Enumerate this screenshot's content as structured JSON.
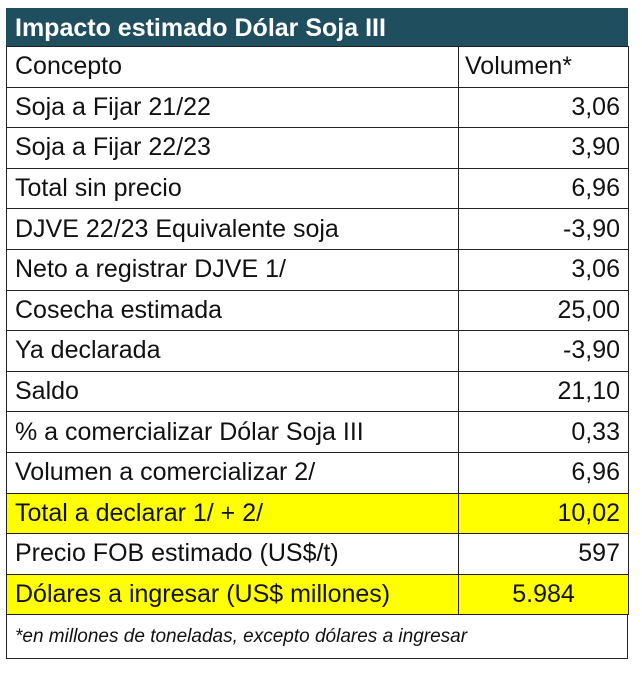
{
  "title": "Impacto estimado Dólar Soja III",
  "header": {
    "concept": "Concepto",
    "value": "Volumen*"
  },
  "rows": [
    {
      "concept": "Soja a Fijar 21/22",
      "value": "3,06"
    },
    {
      "concept": "Soja a Fijar 22/23",
      "value": "3,90"
    },
    {
      "concept": "Total sin precio",
      "value": "6,96"
    },
    {
      "concept": "DJVE 22/23 Equivalente soja",
      "value": "-3,90"
    },
    {
      "concept": "Neto a registrar DJVE 1/",
      "value": "3,06"
    },
    {
      "concept": "Cosecha estimada",
      "value": "25,00"
    },
    {
      "concept": "Ya declarada",
      "value": "-3,90"
    },
    {
      "concept": "Saldo",
      "value": "21,10"
    },
    {
      "concept": "% a comercializar Dólar Soja III",
      "value": "0,33"
    },
    {
      "concept": "Volumen a comercializar 2/",
      "value": "6,96"
    },
    {
      "concept": "Total a declarar 1/ + 2/",
      "value": "10,02"
    },
    {
      "concept": "Precio FOB estimado (US$/t)",
      "value": "597"
    },
    {
      "concept": "Dólares a ingresar (US$ millones)",
      "value": "5.984"
    }
  ],
  "footnote": "*en millones de toneladas, excepto dólares a ingresar",
  "colors": {
    "title_bg": "#1f4e5f",
    "highlight": "#ffff00"
  }
}
